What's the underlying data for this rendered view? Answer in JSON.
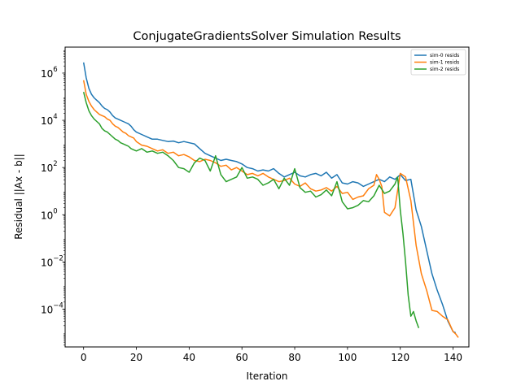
{
  "chart_data": {
    "type": "line",
    "title": "ConjugateGradientsSolver Simulation Results",
    "xlabel": "Iteration",
    "ylabel": "Residual ||Ax - b||",
    "xlim": [
      -7,
      146
    ],
    "ylim_log10": [
      -5.6,
      7.1
    ],
    "yscale": "log",
    "x_ticks": [
      0,
      20,
      40,
      60,
      80,
      100,
      120,
      140
    ],
    "y_tick_exponents": [
      6,
      4,
      2,
      0,
      -2,
      -4
    ],
    "y_tick_labels": [
      {
        "base": "10",
        "exp": "6"
      },
      {
        "base": "10",
        "exp": "4"
      },
      {
        "base": "10",
        "exp": "2"
      },
      {
        "base": "10",
        "exp": "0"
      },
      {
        "base": "10",
        "exp": "−2"
      },
      {
        "base": "10",
        "exp": "−4"
      }
    ],
    "legend_position": "upper right",
    "grid": false,
    "series": [
      {
        "name": "sim-0 resids",
        "color": "#1f77b4",
        "x": [
          0,
          1,
          2,
          3,
          4,
          5,
          6,
          7,
          8,
          9,
          10,
          11,
          12,
          13,
          14,
          15,
          16,
          17,
          18,
          19,
          20,
          22,
          24,
          26,
          28,
          30,
          32,
          34,
          36,
          38,
          40,
          42,
          44,
          46,
          48,
          50,
          52,
          54,
          56,
          58,
          60,
          62,
          64,
          66,
          68,
          70,
          72,
          74,
          76,
          78,
          80,
          82,
          84,
          86,
          88,
          90,
          92,
          94,
          96,
          98,
          100,
          102,
          104,
          106,
          108,
          110,
          112,
          114,
          116,
          118,
          120,
          122,
          124,
          126,
          128,
          130,
          132,
          134,
          136,
          138,
          140,
          141
        ],
        "y_log10": [
          6.45,
          5.8,
          5.35,
          5.1,
          4.95,
          4.85,
          4.75,
          4.6,
          4.5,
          4.45,
          4.35,
          4.2,
          4.1,
          4.05,
          4.0,
          3.95,
          3.9,
          3.85,
          3.75,
          3.6,
          3.5,
          3.4,
          3.3,
          3.2,
          3.2,
          3.15,
          3.1,
          3.12,
          3.05,
          3.1,
          3.05,
          3.0,
          2.8,
          2.6,
          2.5,
          2.4,
          2.3,
          2.35,
          2.3,
          2.25,
          2.15,
          2.0,
          1.95,
          1.85,
          1.9,
          1.85,
          1.95,
          1.75,
          1.6,
          1.7,
          1.8,
          1.65,
          1.6,
          1.7,
          1.75,
          1.65,
          1.8,
          1.55,
          1.7,
          1.35,
          1.3,
          1.4,
          1.35,
          1.2,
          1.3,
          1.4,
          1.5,
          1.4,
          1.6,
          1.5,
          1.7,
          1.45,
          1.5,
          0.2,
          -0.5,
          -1.5,
          -2.5,
          -3.2,
          -3.8,
          -4.5,
          -4.95,
          -5.0
        ]
      },
      {
        "name": "sim-1 resids",
        "color": "#ff7f0e",
        "x": [
          0,
          1,
          2,
          3,
          4,
          5,
          6,
          7,
          8,
          9,
          10,
          11,
          12,
          13,
          14,
          15,
          16,
          17,
          18,
          19,
          20,
          22,
          24,
          26,
          28,
          30,
          32,
          34,
          36,
          38,
          40,
          42,
          44,
          46,
          48,
          50,
          52,
          54,
          56,
          58,
          60,
          62,
          64,
          66,
          68,
          70,
          72,
          74,
          76,
          78,
          80,
          82,
          84,
          86,
          88,
          90,
          92,
          94,
          96,
          98,
          100,
          102,
          104,
          106,
          108,
          110,
          111,
          112,
          113,
          114,
          116,
          118,
          120,
          122,
          124,
          126,
          128,
          130,
          132,
          134,
          136,
          138,
          140,
          141,
          142
        ],
        "y_log10": [
          5.7,
          5.1,
          4.8,
          4.6,
          4.45,
          4.35,
          4.25,
          4.2,
          4.15,
          4.05,
          4.0,
          3.85,
          3.75,
          3.7,
          3.6,
          3.5,
          3.45,
          3.35,
          3.3,
          3.25,
          3.1,
          2.95,
          2.9,
          2.8,
          2.7,
          2.75,
          2.6,
          2.65,
          2.5,
          2.55,
          2.45,
          2.3,
          2.25,
          2.35,
          2.3,
          2.2,
          2.05,
          2.1,
          1.9,
          2.0,
          1.85,
          1.7,
          1.75,
          1.65,
          1.75,
          1.6,
          1.5,
          1.4,
          1.45,
          1.55,
          1.3,
          1.2,
          1.35,
          1.1,
          1.0,
          1.05,
          1.15,
          1.0,
          1.2,
          0.9,
          0.95,
          0.65,
          0.75,
          0.8,
          1.1,
          1.25,
          1.7,
          1.5,
          1.2,
          0.1,
          -0.05,
          0.3,
          1.75,
          1.6,
          0.6,
          -1.3,
          -2.5,
          -3.2,
          -4.05,
          -4.1,
          -4.3,
          -4.45,
          -4.95,
          -5.05,
          -5.2
        ]
      },
      {
        "name": "sim-2 resids",
        "color": "#2ca02c",
        "x": [
          0,
          1,
          2,
          3,
          4,
          5,
          6,
          7,
          8,
          9,
          10,
          11,
          12,
          13,
          14,
          15,
          16,
          17,
          18,
          19,
          20,
          22,
          24,
          26,
          28,
          30,
          32,
          34,
          36,
          38,
          40,
          42,
          44,
          46,
          48,
          50,
          52,
          54,
          56,
          58,
          60,
          62,
          64,
          66,
          68,
          70,
          72,
          74,
          76,
          78,
          80,
          82,
          84,
          86,
          88,
          90,
          92,
          94,
          96,
          98,
          100,
          102,
          104,
          106,
          108,
          110,
          112,
          114,
          116,
          118,
          119,
          120,
          121,
          122,
          123,
          124,
          125,
          126,
          127
        ],
        "y_log10": [
          5.2,
          4.75,
          4.4,
          4.2,
          4.05,
          3.95,
          3.85,
          3.65,
          3.55,
          3.5,
          3.4,
          3.3,
          3.2,
          3.15,
          3.05,
          3.0,
          2.95,
          2.9,
          2.8,
          2.75,
          2.7,
          2.8,
          2.65,
          2.7,
          2.6,
          2.65,
          2.5,
          2.3,
          2.0,
          1.95,
          1.8,
          2.2,
          2.4,
          2.3,
          1.85,
          2.5,
          1.7,
          1.4,
          1.5,
          1.6,
          2.0,
          1.55,
          1.6,
          1.5,
          1.25,
          1.35,
          1.5,
          1.1,
          1.55,
          1.25,
          1.95,
          1.15,
          0.95,
          1.0,
          0.75,
          0.85,
          1.05,
          0.8,
          1.4,
          0.55,
          0.25,
          0.3,
          0.4,
          0.6,
          0.55,
          0.8,
          1.25,
          0.9,
          1.0,
          1.3,
          1.6,
          0.2,
          -0.8,
          -2.0,
          -3.4,
          -4.3,
          -4.1,
          -4.5,
          -4.8
        ]
      }
    ]
  }
}
